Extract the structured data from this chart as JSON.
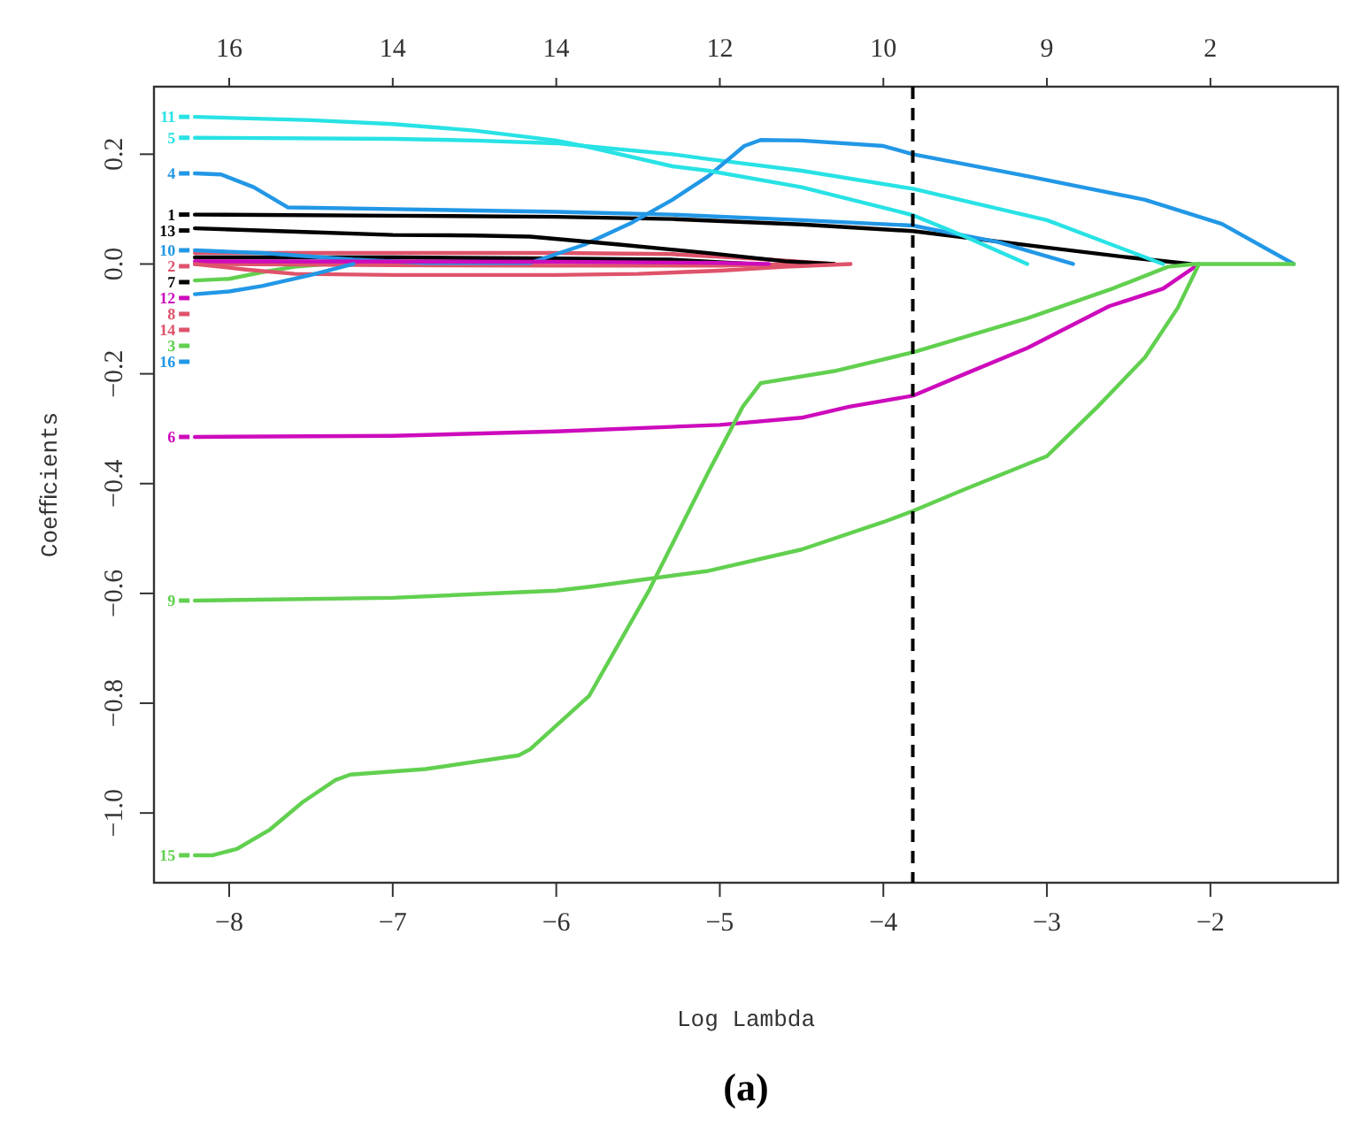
{
  "chart_data": {
    "type": "line",
    "xlabel": "Log Lambda",
    "ylabel": "Coeﬃcients",
    "annotations": [
      "16",
      "14",
      "14",
      "12",
      "10",
      "9",
      "2",
      "(a)"
    ],
    "legend": "left",
    "xlim": [
      -8.46,
      -1.22
    ],
    "ylim": [
      -1.127,
      0.323
    ],
    "xticks": [
      -8,
      -7,
      -6,
      -5,
      -4,
      -3,
      -2
    ],
    "yticks": [
      {
        "value": -1.0,
        "label": "−1.0"
      },
      {
        "value": -0.8,
        "label": "−0.8"
      },
      {
        "value": -0.6,
        "label": "−0.6"
      },
      {
        "value": -0.4,
        "label": "−0.4"
      },
      {
        "value": -0.2,
        "label": "−0.2"
      },
      {
        "value": 0,
        "label": "0.0"
      },
      {
        "value": 0.2,
        "label": "0.2"
      }
    ],
    "ref_lines": [
      {
        "axis": "x",
        "value": -3.82,
        "color": "#000000",
        "line_style": "dashed"
      }
    ],
    "series": [
      {
        "name": "1",
        "color": "#000000",
        "x": [
          -8.21,
          -7,
          -6,
          -5.29,
          -4.5,
          -3.82,
          -3,
          -2.5,
          -2.12
        ],
        "values": [
          0.09,
          0.088,
          0.086,
          0.082,
          0.072,
          0.06,
          0.03,
          0.012,
          0
        ]
      },
      {
        "name": "2",
        "color": "#df536b",
        "x": [
          -8.21,
          -7,
          -6,
          -5.29,
          -4.8,
          -4.3
        ],
        "values": [
          0.02,
          0.02,
          0.02,
          0.018,
          0.01,
          0
        ]
      },
      {
        "name": "3",
        "color": "#61d04f",
        "x": [
          -8.21,
          -8,
          -7.8,
          -7.6,
          -7.4
        ],
        "values": [
          -0.03,
          -0.027,
          -0.015,
          -0.005,
          0
        ]
      },
      {
        "name": "4",
        "color": "#2297e6",
        "x": [
          -8.21,
          -8.05,
          -7.85,
          -7.64,
          -7,
          -6,
          -5.29,
          -4.5,
          -3.82,
          -3.3,
          -2.84
        ],
        "values": [
          0.165,
          0.163,
          0.14,
          0.103,
          0.1,
          0.095,
          0.09,
          0.08,
          0.07,
          0.04,
          0
        ]
      },
      {
        "name": "5",
        "color": "#28e2e5",
        "x": [
          -8.21,
          -7,
          -6.5,
          -6,
          -5.83,
          -5.29,
          -5.07,
          -4.5,
          -3.82,
          -3,
          -2.29
        ],
        "values": [
          0.23,
          0.228,
          0.225,
          0.22,
          0.215,
          0.2,
          0.191,
          0.17,
          0.137,
          0.08,
          0
        ]
      },
      {
        "name": "6",
        "color": "#cd0bbc",
        "x": [
          -8.21,
          -7,
          -6,
          -5,
          -4.5,
          -4.21,
          -3.82,
          -3.5,
          -3.12,
          -2.62,
          -2.29,
          -2.07
        ],
        "values": [
          -0.315,
          -0.313,
          -0.305,
          -0.293,
          -0.28,
          -0.26,
          -0.24,
          -0.2,
          -0.153,
          -0.077,
          -0.045,
          0
        ]
      },
      {
        "name": "7",
        "color": "#000000",
        "x": [
          -8.21,
          -7,
          -6,
          -5.3,
          -4.8
        ],
        "values": [
          0.012,
          0.012,
          0.01,
          0.008,
          0
        ]
      },
      {
        "name": "8",
        "color": "#df536b",
        "x": [
          -8.21,
          -7,
          -6,
          -5,
          -4.5
        ],
        "values": [
          0,
          -0.002,
          -0.003,
          -0.003,
          0
        ]
      },
      {
        "name": "9",
        "color": "#61d04f",
        "x": [
          -8.21,
          -7,
          -6,
          -5.8,
          -5.07,
          -4.5,
          -4,
          -3.82,
          -3.5,
          -3,
          -2.69,
          -2.4,
          -2.2,
          -2.07
        ],
        "values": [
          -0.613,
          -0.608,
          -0.595,
          -0.588,
          -0.559,
          -0.52,
          -0.47,
          -0.45,
          -0.41,
          -0.35,
          -0.26,
          -0.17,
          -0.08,
          0
        ]
      },
      {
        "name": "10",
        "color": "#2297e6",
        "x": [
          -8.21,
          -7.8,
          -7.24,
          -6.8,
          -6.16,
          -5.83,
          -5.54,
          -5.29,
          -5.07,
          -4.85,
          -4.75,
          -4.5,
          -4,
          -3.82,
          -3.12,
          -2.4,
          -1.93,
          -1.49
        ],
        "values": [
          0.025,
          0.02,
          0.008,
          0.002,
          0.002,
          0.035,
          0.075,
          0.117,
          0.16,
          0.215,
          0.226,
          0.225,
          0.215,
          0.2,
          0.16,
          0.117,
          0.073,
          0
        ]
      },
      {
        "name": "11",
        "color": "#28e2e5",
        "x": [
          -8.21,
          -7.5,
          -7,
          -6.5,
          -6,
          -5.83,
          -5.29,
          -5.07,
          -4.5,
          -3.82,
          -3.5,
          -3.12
        ],
        "values": [
          0.268,
          0.262,
          0.255,
          0.243,
          0.225,
          0.215,
          0.178,
          0.17,
          0.14,
          0.089,
          0.05,
          0
        ]
      },
      {
        "name": "12",
        "color": "#cd0bbc",
        "x": [
          -8.21,
          -6,
          -5,
          -4.7
        ],
        "values": [
          0.005,
          0.004,
          0.002,
          0
        ]
      },
      {
        "name": "13",
        "color": "#000000",
        "x": [
          -8.21,
          -7.5,
          -7,
          -6.5,
          -6.16,
          -5.6,
          -5.07,
          -4.6,
          -4.3
        ],
        "values": [
          0.065,
          0.058,
          0.053,
          0.052,
          0.05,
          0.035,
          0.02,
          0.005,
          0
        ]
      },
      {
        "name": "14",
        "color": "#df536b",
        "x": [
          -8.21,
          -7.9,
          -7.6,
          -7,
          -6,
          -5.5,
          -5,
          -4.6,
          -4.2
        ],
        "values": [
          0,
          -0.01,
          -0.018,
          -0.02,
          -0.02,
          -0.018,
          -0.012,
          -0.005,
          0
        ]
      },
      {
        "name": "15",
        "color": "#61d04f",
        "x": [
          -8.21,
          -8.1,
          -7.95,
          -7.75,
          -7.55,
          -7.35,
          -7.26,
          -6.8,
          -6.23,
          -6.16,
          -5.8,
          -5.43,
          -5.07,
          -4.86,
          -4.75,
          -4.3,
          -3.82,
          -3.12,
          -2.6,
          -2.26,
          -2.1,
          -1.49
        ],
        "values": [
          -1.077,
          -1.077,
          -1.065,
          -1.03,
          -0.98,
          -0.94,
          -0.93,
          -0.92,
          -0.895,
          -0.884,
          -0.787,
          -0.593,
          -0.379,
          -0.26,
          -0.217,
          -0.195,
          -0.161,
          -0.099,
          -0.045,
          -0.005,
          0,
          0
        ]
      },
      {
        "name": "16",
        "color": "#2297e6",
        "x": [
          -8.21,
          -8,
          -7.8,
          -7.5,
          -7.24
        ],
        "values": [
          -0.055,
          -0.05,
          -0.04,
          -0.02,
          0
        ]
      }
    ]
  }
}
